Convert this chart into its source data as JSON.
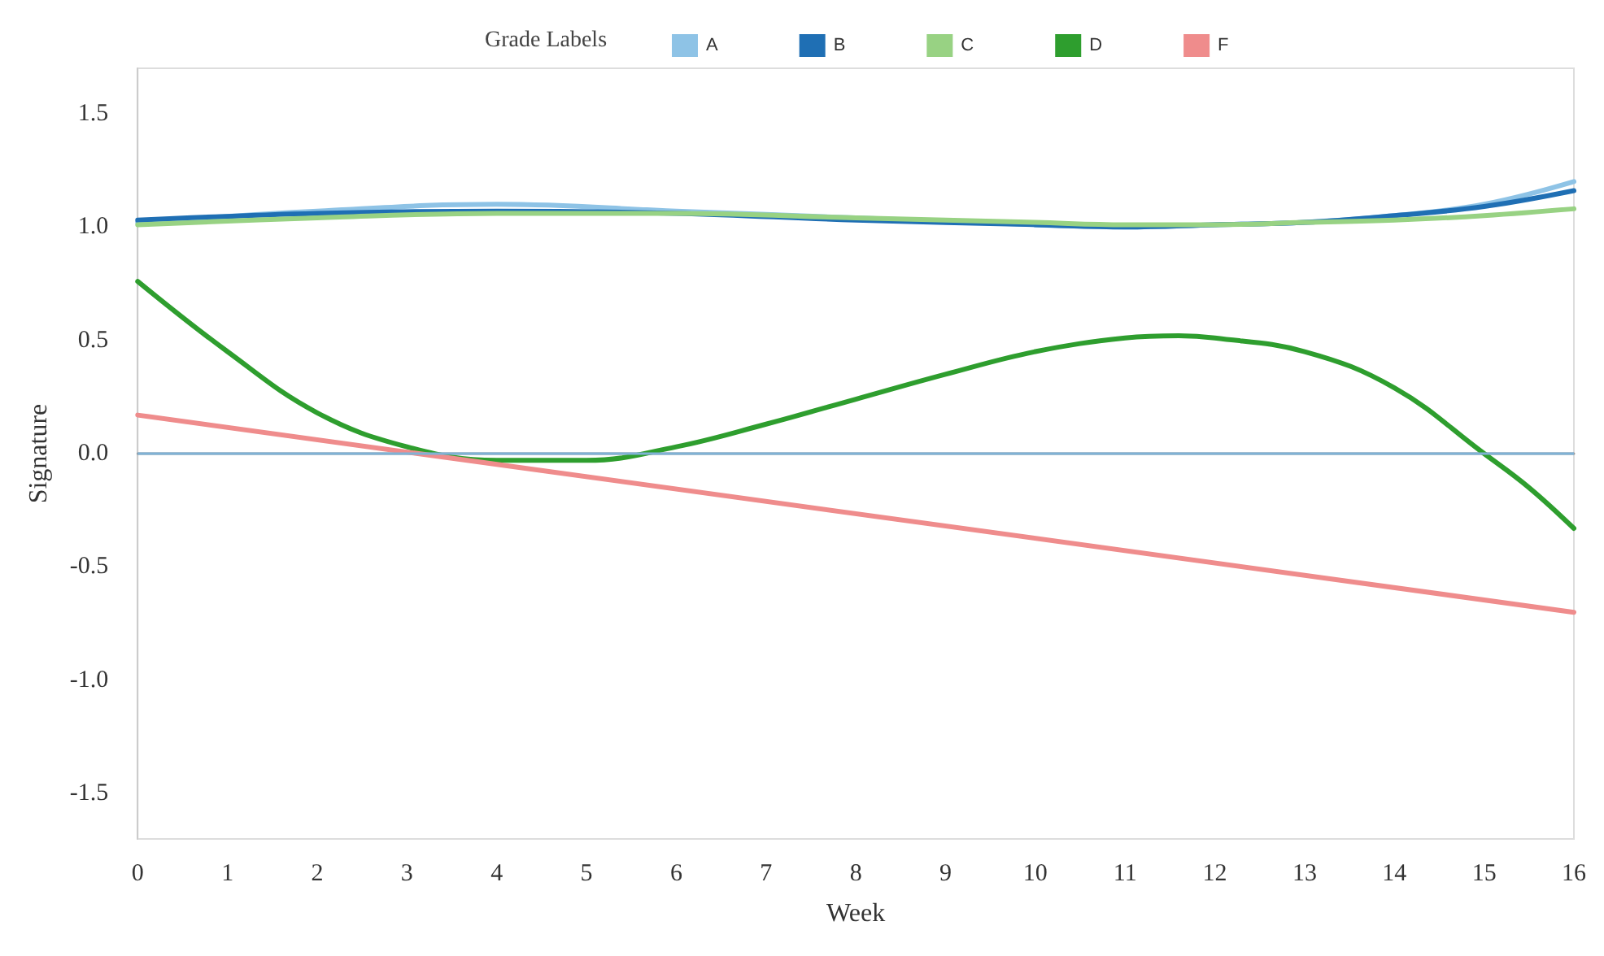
{
  "chart_data": {
    "type": "line",
    "xlabel": "Week",
    "ylabel": "Signature",
    "legend_title": "Grade Labels",
    "legend": "top",
    "grid": false,
    "marker": "none",
    "line_style": "solid",
    "xlim": [
      0,
      16
    ],
    "xticks": [
      0,
      1,
      2,
      3,
      4,
      5,
      6,
      7,
      8,
      9,
      10,
      11,
      12,
      13,
      14,
      15,
      16
    ],
    "ylim": [
      -1.7,
      1.7
    ],
    "yticks": [
      -1.5,
      {
        "value": -1,
        "label": "-1.0"
      },
      -0.5,
      {
        "value": 0,
        "label": "0.0"
      },
      0.5,
      {
        "value": 1,
        "label": "1.0"
      },
      1.5
    ],
    "ref_lines": [
      {
        "axis": "y",
        "value": 0,
        "color": "#7fb2d6"
      }
    ],
    "series": [
      {
        "name": "A",
        "color": "#8ec3e6",
        "x": [
          0,
          2,
          4,
          6,
          8,
          10,
          11,
          12,
          13,
          14,
          15,
          16
        ],
        "values": [
          1.02,
          1.07,
          1.1,
          1.07,
          1.04,
          1.01,
          1.0,
          1.01,
          1.02,
          1.05,
          1.1,
          1.2
        ]
      },
      {
        "name": "B",
        "color": "#1f6fb4",
        "x": [
          0,
          2,
          4,
          6,
          8,
          10,
          11,
          12,
          13,
          14,
          15,
          16
        ],
        "values": [
          1.03,
          1.06,
          1.07,
          1.06,
          1.03,
          1.01,
          1.0,
          1.01,
          1.02,
          1.05,
          1.09,
          1.16
        ]
      },
      {
        "name": "C",
        "color": "#98d283",
        "x": [
          0,
          2,
          4,
          6,
          8,
          10,
          11,
          12,
          13,
          14,
          15,
          16
        ],
        "values": [
          1.01,
          1.04,
          1.06,
          1.06,
          1.04,
          1.02,
          1.01,
          1.01,
          1.02,
          1.03,
          1.05,
          1.08
        ]
      },
      {
        "name": "D",
        "color": "#2e9e2e",
        "x": [
          0,
          1,
          2,
          3,
          4,
          5,
          6,
          7,
          8,
          9,
          10,
          11,
          11.6,
          12,
          13,
          14,
          15,
          15.5,
          16
        ],
        "values": [
          0.76,
          0.45,
          0.18,
          0.03,
          -0.03,
          -0.03,
          0.03,
          0.13,
          0.24,
          0.35,
          0.45,
          0.51,
          0.52,
          0.51,
          0.45,
          0.29,
          0.0,
          -0.15,
          -0.33
        ]
      },
      {
        "name": "F",
        "color": "#ef8c8c",
        "x": [
          0,
          16
        ],
        "values": [
          0.17,
          -0.7
        ]
      }
    ]
  }
}
